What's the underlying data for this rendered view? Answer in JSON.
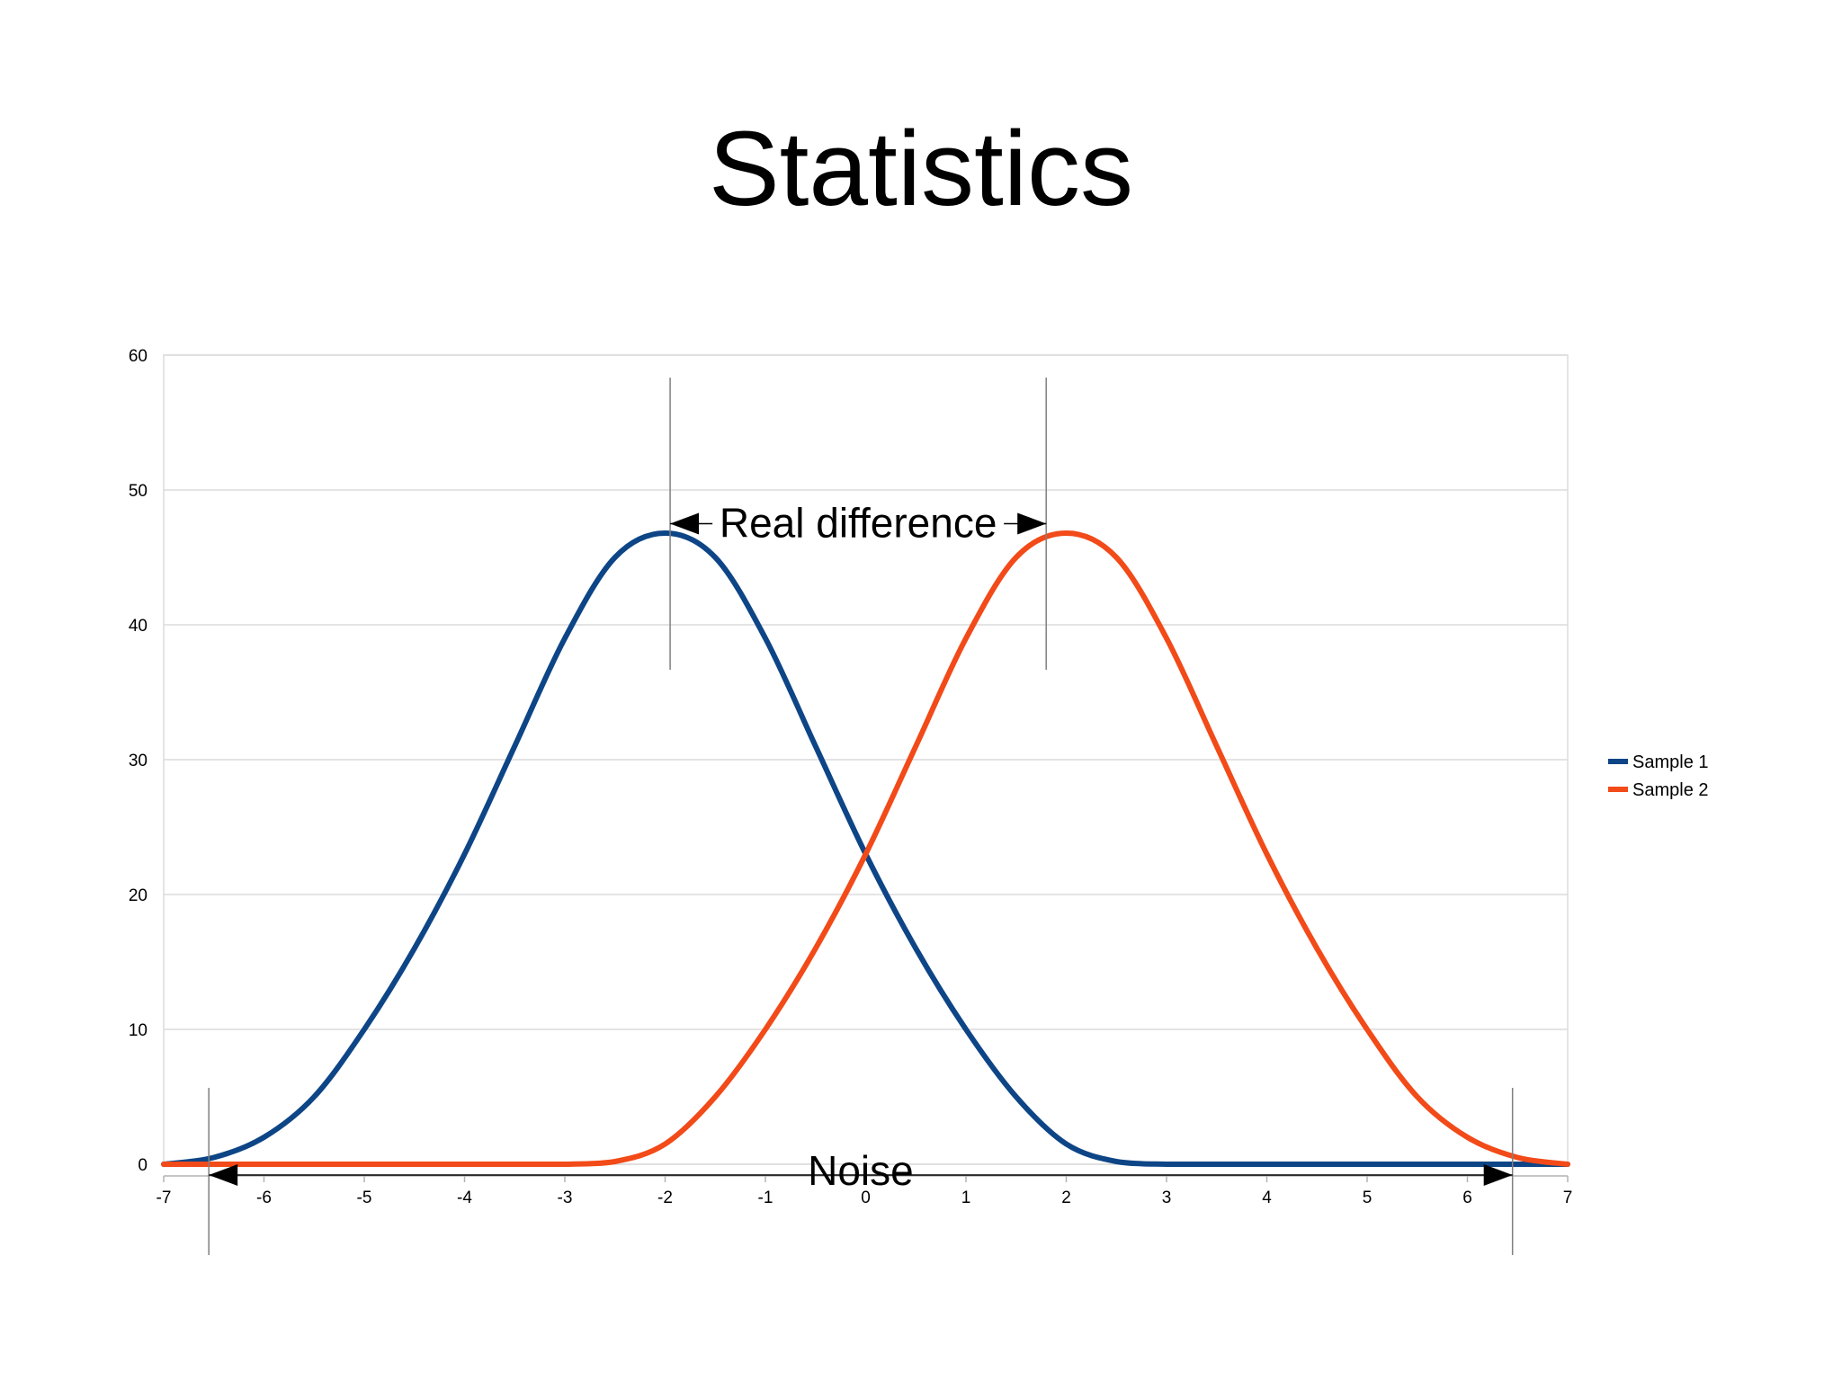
{
  "slide": {
    "title": "Statistics"
  },
  "chart_data": {
    "type": "line",
    "title": "",
    "xlabel": "",
    "ylabel": "",
    "xlim": [
      -7,
      7
    ],
    "ylim": [
      0,
      60
    ],
    "x_ticks": [
      -7,
      -6,
      -5,
      -4,
      -3,
      -2,
      -1,
      0,
      1,
      2,
      3,
      4,
      5,
      6,
      7
    ],
    "y_ticks": [
      0,
      10,
      20,
      30,
      40,
      50,
      60
    ],
    "grid": true,
    "legend_position": "right",
    "series": [
      {
        "name": "Sample 1",
        "color": "#0d4586",
        "x": [
          -7,
          -6.5,
          -6,
          -5.5,
          -5,
          -4.5,
          -4,
          -3.5,
          -3,
          -2.5,
          -2,
          -1.5,
          -1,
          -0.5,
          0,
          0.5,
          1,
          1.5,
          2,
          2.5,
          3,
          3.5,
          4,
          4.5,
          5,
          5.5,
          6,
          6.5,
          7
        ],
        "values": [
          0,
          0.5,
          2,
          5,
          10,
          16,
          23,
          31,
          39,
          45,
          46.8,
          45,
          39,
          31,
          23,
          16,
          10,
          5,
          1.5,
          0.2,
          0,
          0,
          0,
          0,
          0,
          0,
          0,
          0,
          0
        ]
      },
      {
        "name": "Sample 2",
        "color": "#f24a18",
        "x": [
          -7,
          -6.5,
          -6,
          -5.5,
          -5,
          -4.5,
          -4,
          -3.5,
          -3,
          -2.5,
          -2,
          -1.5,
          -1,
          -0.5,
          0,
          0.5,
          1,
          1.5,
          2,
          2.5,
          3,
          3.5,
          4,
          4.5,
          5,
          5.5,
          6,
          6.5,
          7
        ],
        "values": [
          0,
          0,
          0,
          0,
          0,
          0,
          0,
          0,
          0,
          0.2,
          1.5,
          5,
          10,
          16,
          23,
          31,
          39,
          45,
          46.8,
          45,
          39,
          31,
          23,
          16,
          10,
          5,
          2,
          0.5,
          0
        ]
      }
    ],
    "annotations": [
      {
        "text": "Real difference",
        "x_start": -1.95,
        "x_end": 1.8,
        "y": 47.5
      },
      {
        "text": "Noise",
        "x_start": -6.55,
        "x_end": 6.45,
        "y": -0.8
      }
    ]
  }
}
